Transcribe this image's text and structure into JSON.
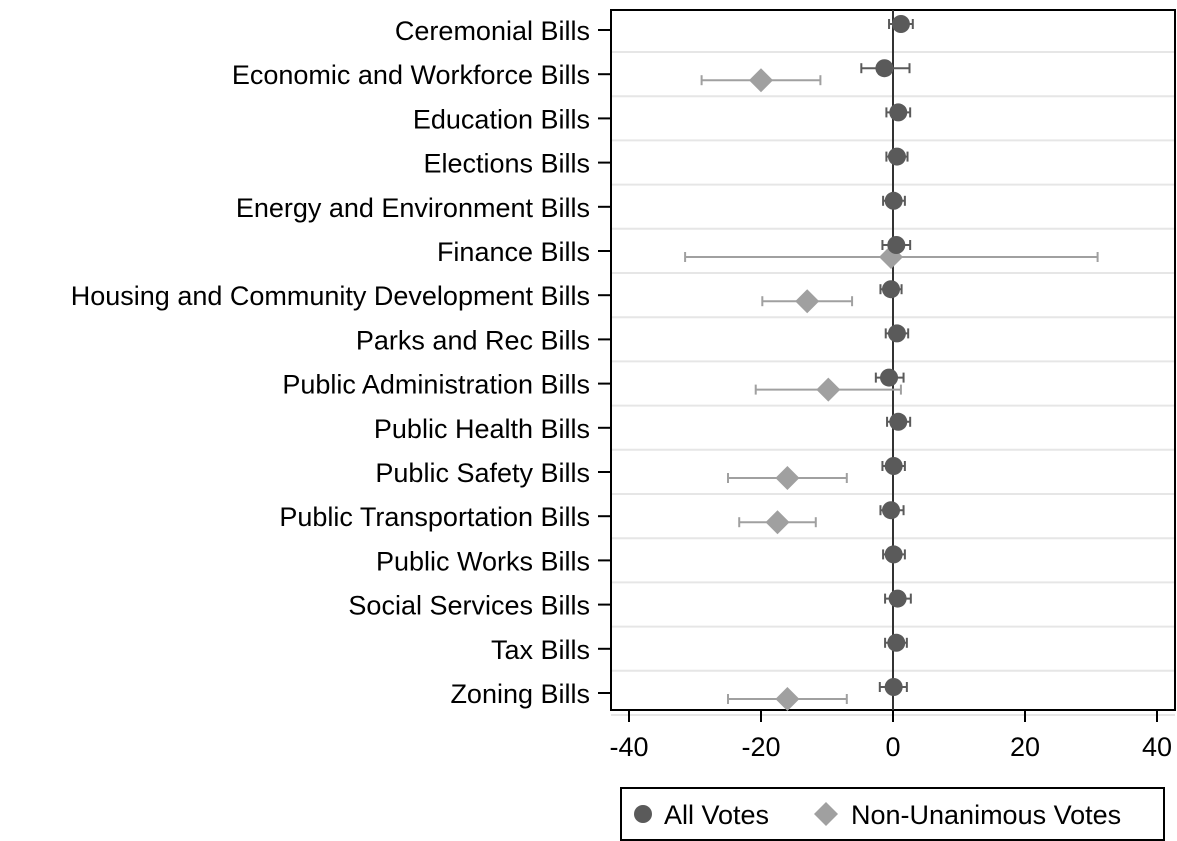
{
  "chart_data": {
    "type": "scatter",
    "subtype": "coefficient-plot",
    "orientation": "horizontal",
    "categories": [
      "Ceremonial Bills",
      "Economic and Workforce Bills",
      "Education Bills",
      "Elections Bills",
      "Energy and Environment Bills",
      "Finance Bills",
      "Housing and Community Development Bills",
      "Parks and Rec Bills",
      "Public Administration Bills",
      "Public Health Bills",
      "Public Safety Bills",
      "Public Transportation Bills",
      "Public Works Bills",
      "Social Services Bills",
      "Tax Bills",
      "Zoning Bills"
    ],
    "xlim": [
      -42,
      42
    ],
    "xticks": [
      -40,
      -20,
      0,
      20,
      40
    ],
    "reference_line": 0,
    "grid": "horizontal",
    "legend_position": "bottom",
    "series": [
      {
        "name": "All Votes",
        "marker": "circle",
        "color": "#5a5a5a",
        "estimates": [
          1.2,
          -1.3,
          0.8,
          0.6,
          0.1,
          0.5,
          -0.3,
          0.6,
          -0.6,
          0.8,
          0.1,
          -0.3,
          0.1,
          0.7,
          0.5,
          0.1
        ],
        "ci_low": [
          -0.6,
          -4.8,
          -1.0,
          -1.0,
          -1.5,
          -1.6,
          -1.9,
          -1.1,
          -2.6,
          -0.9,
          -1.6,
          -1.9,
          -1.5,
          -1.2,
          -1.2,
          -2.0
        ],
        "ci_high": [
          3.0,
          2.5,
          2.6,
          2.2,
          1.8,
          2.6,
          1.3,
          2.3,
          1.6,
          2.6,
          1.8,
          1.6,
          1.8,
          2.7,
          2.1,
          2.1
        ]
      },
      {
        "name": "Non-Unanimous Votes",
        "marker": "diamond",
        "color": "#a0a0a0",
        "estimates": [
          null,
          -20.0,
          null,
          null,
          null,
          -0.3,
          -13.0,
          null,
          -9.8,
          null,
          -16.0,
          -17.5,
          null,
          null,
          null,
          -16.0
        ],
        "ci_low": [
          null,
          -29.0,
          null,
          null,
          null,
          -31.5,
          -19.8,
          null,
          -20.8,
          null,
          -25.0,
          -23.3,
          null,
          null,
          null,
          -25.0
        ],
        "ci_high": [
          null,
          -11.0,
          null,
          null,
          null,
          31.0,
          -6.2,
          null,
          1.2,
          null,
          -7.0,
          -11.7,
          null,
          null,
          null,
          -7.0
        ]
      }
    ]
  }
}
